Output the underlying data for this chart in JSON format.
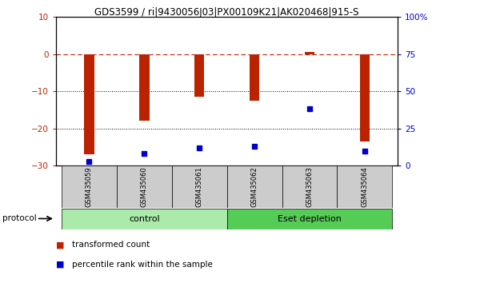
{
  "title": "GDS3599 / ri|9430056J03|PX00109K21|AK020468|915-S",
  "samples": [
    "GSM435059",
    "GSM435060",
    "GSM435061",
    "GSM435062",
    "GSM435063",
    "GSM435064"
  ],
  "red_bar_values": [
    -27.0,
    -18.0,
    -11.5,
    -12.5,
    0.5,
    -23.5
  ],
  "blue_percentiles": [
    3,
    8,
    12,
    13,
    38,
    10
  ],
  "ylim_left": [
    -30,
    10
  ],
  "ylim_right": [
    0,
    100
  ],
  "left_yticks": [
    -30,
    -20,
    -10,
    0,
    10
  ],
  "right_yticks": [
    0,
    25,
    50,
    75,
    100
  ],
  "dotted_lines": [
    -10,
    -20
  ],
  "bar_color": "#BB2200",
  "marker_color": "#0000CC",
  "bar_width": 0.18,
  "protocol_label": "protocol",
  "legend_red_label": "transformed count",
  "legend_blue_label": "percentile rank within the sample",
  "control_color": "#AAEAAA",
  "eset_color": "#55CC55",
  "group_boundaries": [
    [
      -0.5,
      2.5,
      "control",
      "#AAEAAA"
    ],
    [
      2.5,
      5.5,
      "Eset depletion",
      "#55CC55"
    ]
  ]
}
